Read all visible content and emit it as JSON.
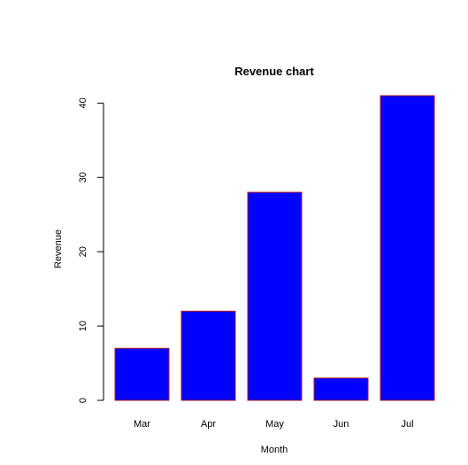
{
  "chart_data": {
    "type": "bar",
    "title": "Revenue chart",
    "xlabel": "Month",
    "ylabel": "Revenue",
    "categories": [
      "Mar",
      "Apr",
      "May",
      "Jun",
      "Jul"
    ],
    "values": [
      7,
      12,
      28,
      3,
      41
    ],
    "ylim": [
      0,
      41
    ],
    "yticks": [
      0,
      10,
      20,
      30,
      40
    ],
    "grid": false,
    "bar_fill_color": "#0000ff",
    "bar_border_color": "#b22222"
  }
}
